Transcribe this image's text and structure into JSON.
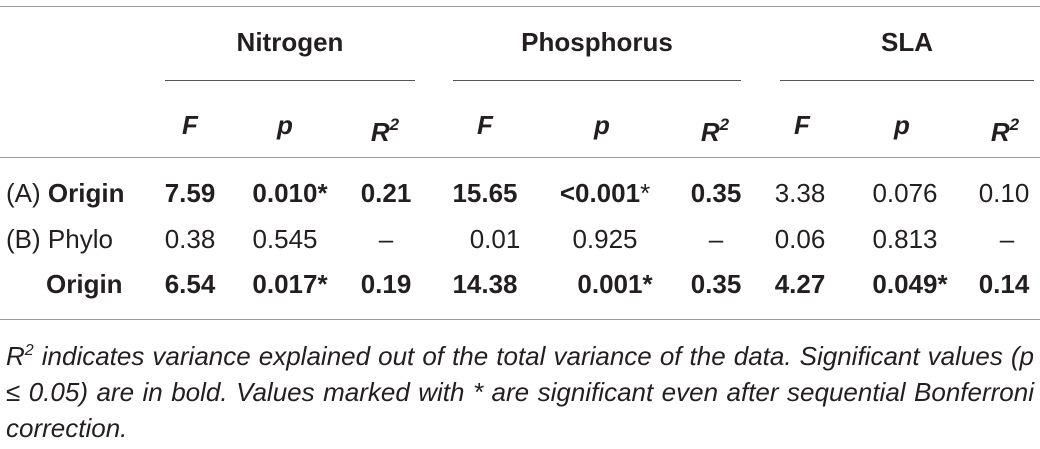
{
  "headers": {
    "groups": [
      "Nitrogen",
      "Phosphorus",
      "SLA"
    ],
    "stat_f": "F",
    "stat_p": "p",
    "stat_r": "R",
    "stat_r_sup": "2"
  },
  "rows": {
    "a": {
      "label_prefix": "(A)",
      "label": "Origin",
      "n_f": "7.59",
      "n_p": "0.010*",
      "n_r": "0.21",
      "p_f": "15.65",
      "p_p": "<0.001",
      "p_p_star": "*",
      "p_r": "0.35",
      "s_f": "3.38",
      "s_p": "0.076",
      "s_r": "0.10"
    },
    "b": {
      "label_prefix": "(B)",
      "label": "Phylo",
      "n_f": "0.38",
      "n_p": "0.545",
      "n_r": "–",
      "p_f": "0.01",
      "p_p": "0.925",
      "p_r": "–",
      "s_f": "0.06",
      "s_p": "0.813",
      "s_r": "–"
    },
    "c": {
      "label": "Origin",
      "n_f": "6.54",
      "n_p": "0.017*",
      "n_r": "0.19",
      "p_f": "14.38",
      "p_p": "0.001*",
      "p_r": "0.35",
      "s_f": "4.27",
      "s_p": "0.049*",
      "s_r": "0.14"
    }
  },
  "footnote": {
    "r": "R",
    "r_sup": "2",
    "text": " indicates variance explained out of the total variance of the data. Significant values (p ≤ 0.05) are in bold. Values marked with * are significant even after sequential Bonferroni correction."
  }
}
